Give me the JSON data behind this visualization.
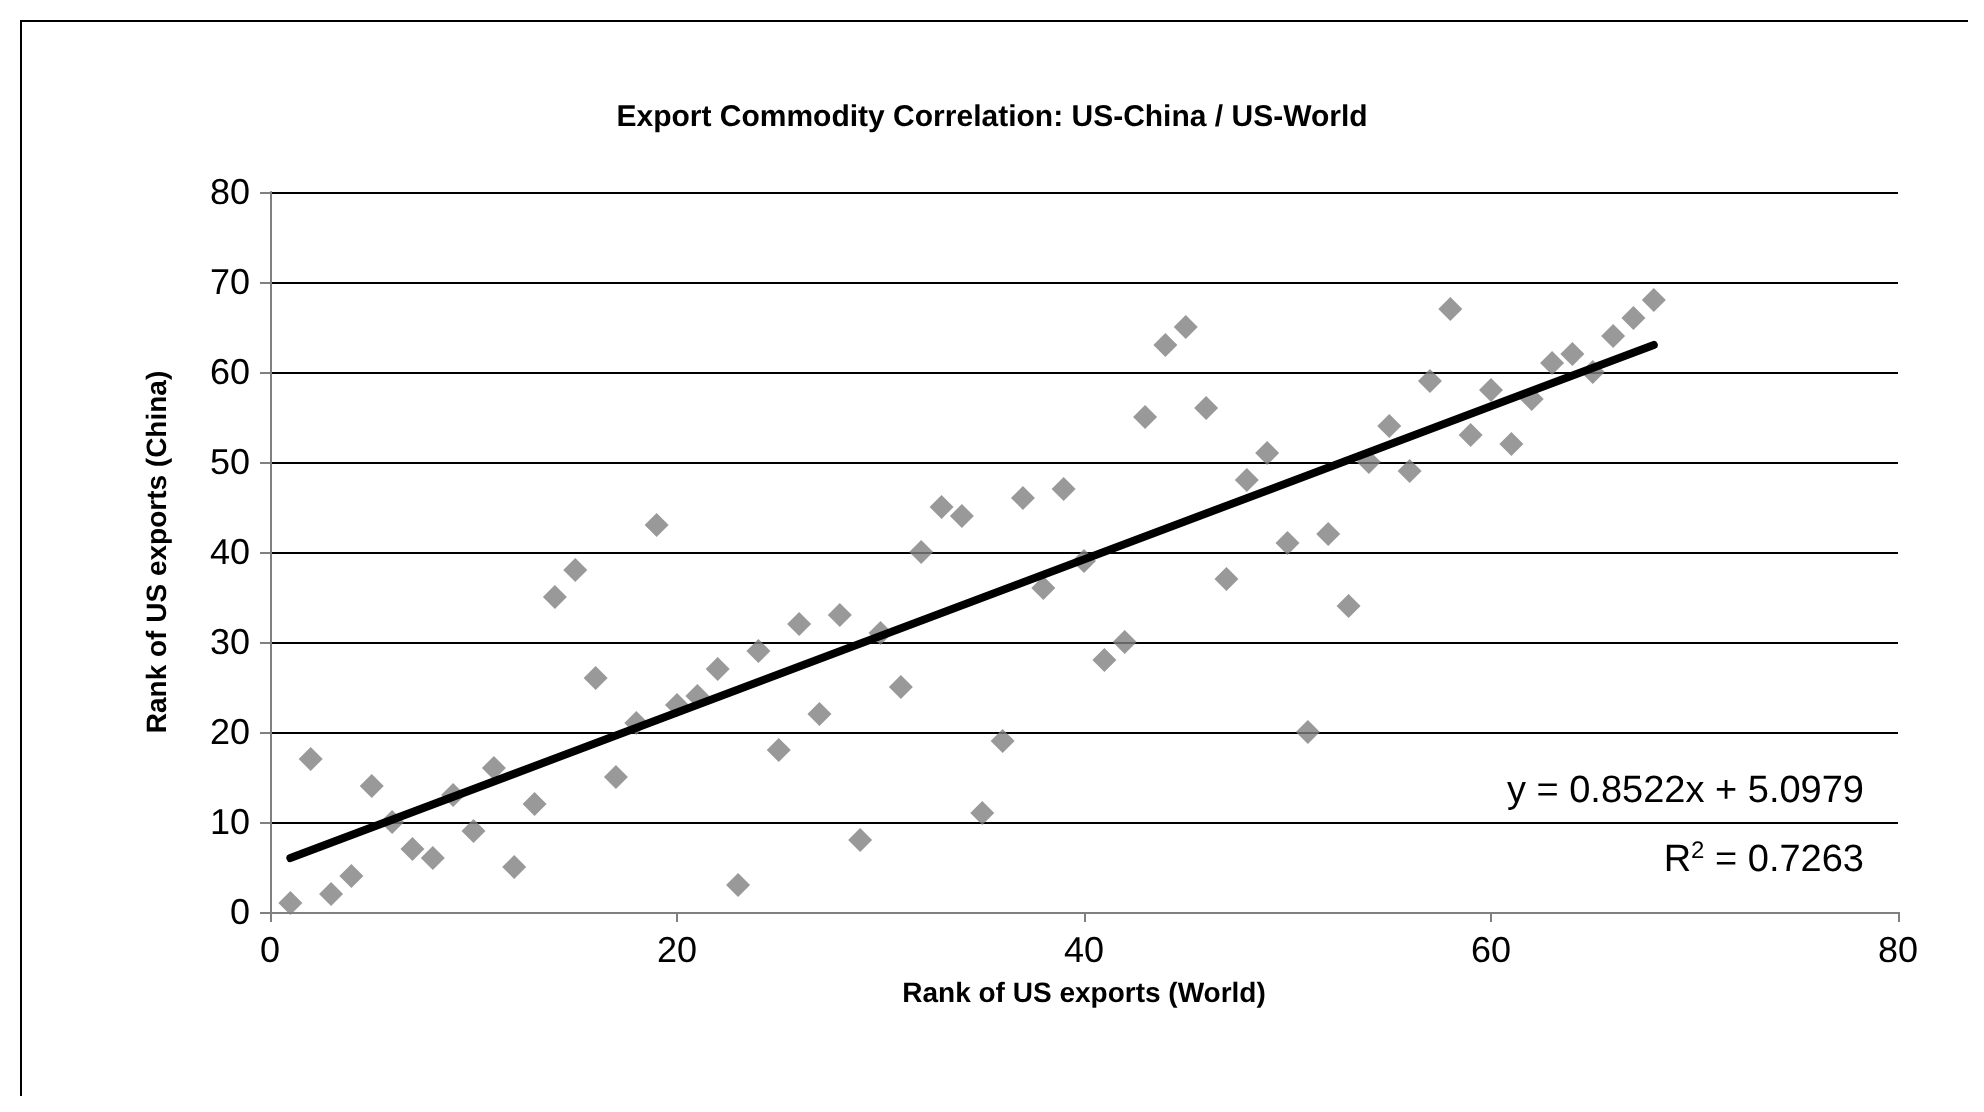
{
  "chart_data": {
    "type": "scatter",
    "title": "Export Commodity Correlation: US-China / US-World",
    "xlabel": "Rank of US exports (World)",
    "ylabel": "Rank of US exports (China)",
    "xlim": [
      0,
      80
    ],
    "xticks": [
      0,
      20,
      40,
      60,
      80
    ],
    "ylim": [
      0,
      80
    ],
    "yticks": [
      0,
      10,
      20,
      30,
      40,
      50,
      60,
      70,
      80
    ],
    "grid": "y",
    "marker": "diamond",
    "annotations": [
      "y = 0.8522x + 5.0979",
      "R$^{2}$ = 0.7263"
    ],
    "series": [
      {
        "color": "#808080",
        "x": [
          1,
          2,
          3,
          4,
          5,
          6,
          7,
          8,
          9,
          10,
          11,
          12,
          13,
          14,
          15,
          16,
          17,
          18,
          19,
          20,
          21,
          22,
          23,
          24,
          25,
          26,
          27,
          28,
          29,
          30,
          31,
          32,
          33,
          34,
          35,
          36,
          37,
          38,
          39,
          40,
          41,
          42,
          43,
          44,
          45,
          46,
          47,
          48,
          49,
          50,
          51,
          52,
          53,
          54,
          55,
          56,
          57,
          58,
          59,
          60,
          61,
          62,
          63,
          64,
          65,
          66,
          67,
          68
        ],
        "values": [
          1,
          17,
          2,
          4,
          14,
          10,
          7,
          6,
          13,
          9,
          16,
          5,
          12,
          35,
          38,
          26,
          15,
          21,
          43,
          23,
          24,
          27,
          3,
          29,
          18,
          32,
          22,
          33,
          8,
          31,
          25,
          40,
          45,
          44,
          11,
          19,
          46,
          36,
          47,
          39,
          28,
          30,
          55,
          63,
          65,
          56,
          37,
          48,
          51,
          41,
          20,
          42,
          34,
          50,
          54,
          49,
          59,
          67,
          53,
          58,
          52,
          57,
          61,
          62,
          60,
          64,
          66,
          68
        ]
      },
      {
        "type": "line",
        "color": "#000000",
        "marker": "none",
        "line_style": "solid",
        "x": [
          1,
          68
        ],
        "values": [
          6,
          63
        ]
      }
    ]
  }
}
